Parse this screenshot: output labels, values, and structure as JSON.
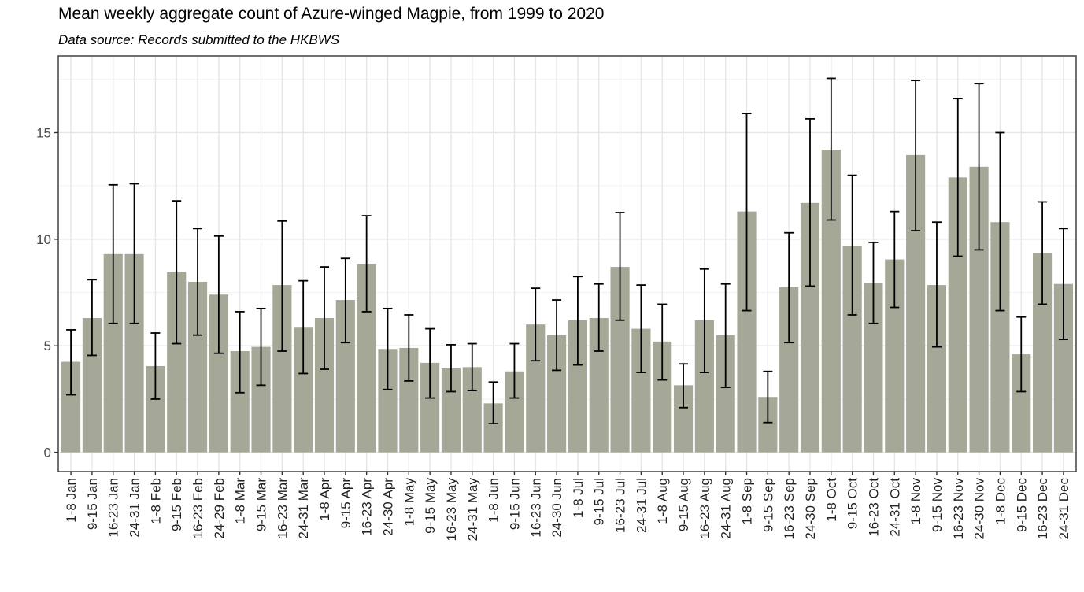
{
  "chart_data": {
    "type": "bar",
    "title": "Mean weekly aggregate count of Azure-winged Magpie, from 1999 to 2020",
    "subtitle": "Data source: Records submitted to the HKBWS",
    "xlabel": "",
    "ylabel": "",
    "ylim": [
      -0.9,
      18.6
    ],
    "yticks": [
      0,
      5,
      10,
      15
    ],
    "grid": true,
    "legend": "none",
    "colors": {
      "bar": "#a5a797",
      "errorbar": "#000000",
      "grid_major": "#e6e6e6",
      "grid_minor": "#f2f2f2",
      "panel_border": "#333333"
    },
    "categories": [
      "1-8 Jan",
      "9-15 Jan",
      "16-23 Jan",
      "24-31 Jan",
      "1-8 Feb",
      "9-15 Feb",
      "16-23 Feb",
      "24-29 Feb",
      "1-8 Mar",
      "9-15 Mar",
      "16-23 Mar",
      "24-31 Mar",
      "1-8 Apr",
      "9-15 Apr",
      "16-23 Apr",
      "24-30 Apr",
      "1-8 May",
      "9-15 May",
      "16-23 May",
      "24-31 May",
      "1-8 Jun",
      "9-15 Jun",
      "16-23 Jun",
      "24-30 Jun",
      "1-8 Jul",
      "9-15 Jul",
      "16-23 Jul",
      "24-31 Jul",
      "1-8 Aug",
      "9-15 Aug",
      "16-23 Aug",
      "24-31 Aug",
      "1-8 Sep",
      "9-15 Sep",
      "16-23 Sep",
      "24-30 Sep",
      "1-8 Oct",
      "9-15 Oct",
      "16-23 Oct",
      "24-31 Oct",
      "1-8 Nov",
      "9-15 Nov",
      "16-23 Nov",
      "24-30 Nov",
      "1-8 Dec",
      "9-15 Dec",
      "16-23 Dec",
      "24-31 Dec"
    ],
    "values": [
      4.25,
      6.3,
      9.3,
      9.3,
      4.05,
      8.45,
      8.0,
      7.4,
      4.75,
      4.95,
      7.85,
      5.85,
      6.3,
      7.15,
      8.85,
      4.85,
      4.9,
      4.2,
      3.95,
      4.0,
      2.3,
      3.8,
      6.0,
      5.5,
      6.2,
      6.3,
      8.7,
      5.8,
      5.2,
      3.15,
      6.2,
      5.5,
      11.3,
      2.6,
      7.75,
      11.7,
      14.2,
      9.7,
      7.95,
      9.05,
      13.95,
      7.85,
      12.9,
      13.4,
      10.8,
      4.6,
      9.35,
      7.9
    ],
    "error_low": [
      2.7,
      4.55,
      6.05,
      6.05,
      2.5,
      5.1,
      5.5,
      4.65,
      2.8,
      3.15,
      4.75,
      3.7,
      3.9,
      5.15,
      6.6,
      2.95,
      3.35,
      2.55,
      2.85,
      2.9,
      1.35,
      2.55,
      4.3,
      3.85,
      4.1,
      4.75,
      6.2,
      3.75,
      3.4,
      2.1,
      3.75,
      3.05,
      6.65,
      1.4,
      5.15,
      7.8,
      10.9,
      6.45,
      6.05,
      6.8,
      10.4,
      4.95,
      9.2,
      9.5,
      6.65,
      2.85,
      6.95,
      5.3
    ],
    "error_high": [
      5.75,
      8.1,
      12.55,
      12.6,
      5.6,
      11.8,
      10.5,
      10.15,
      6.6,
      6.75,
      10.85,
      8.05,
      8.7,
      9.1,
      11.1,
      6.75,
      6.45,
      5.8,
      5.05,
      5.1,
      3.3,
      5.1,
      7.7,
      7.15,
      8.25,
      7.9,
      11.25,
      7.85,
      6.95,
      4.15,
      8.6,
      7.9,
      15.9,
      3.8,
      10.3,
      15.65,
      17.55,
      13.0,
      9.85,
      11.3,
      17.45,
      10.8,
      16.6,
      17.3,
      15.0,
      6.35,
      11.75,
      10.5
    ]
  }
}
